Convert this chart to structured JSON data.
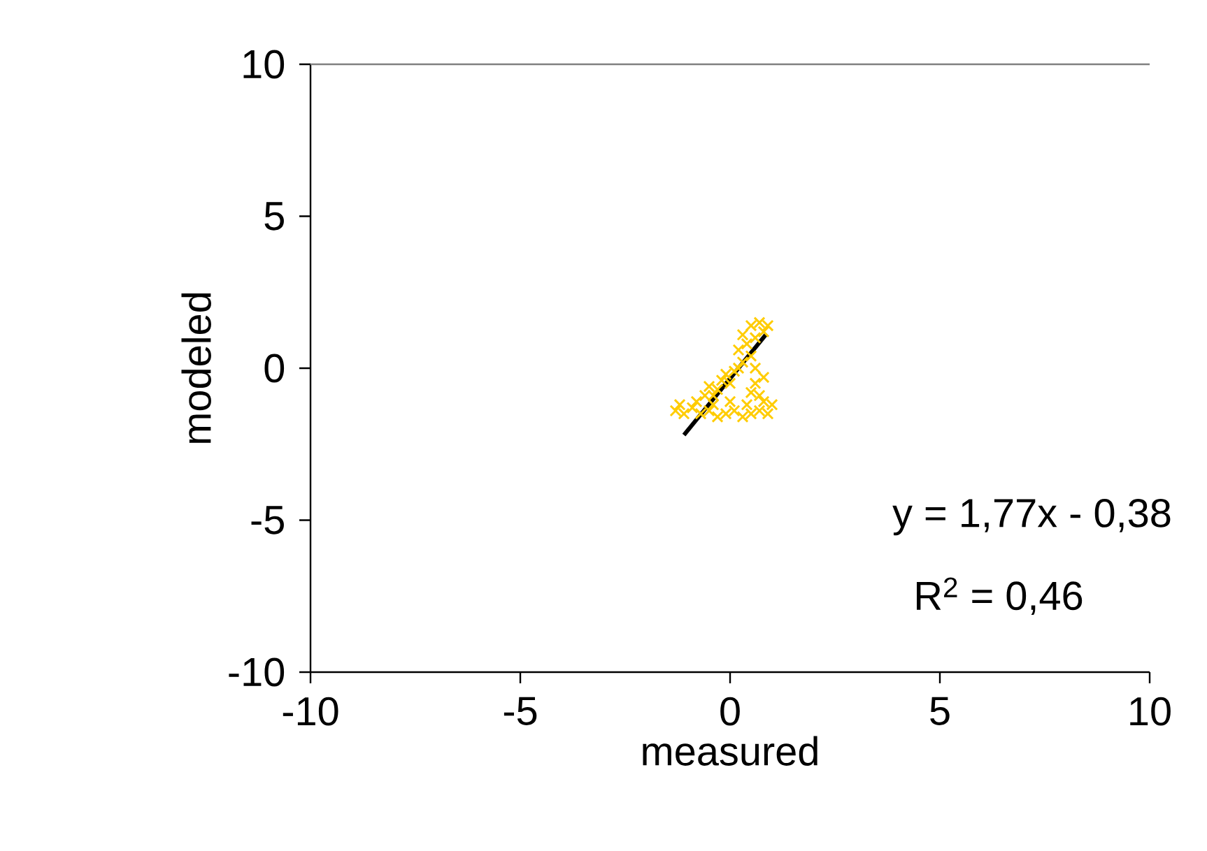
{
  "chart_data": {
    "type": "scatter",
    "xlabel": "measured",
    "ylabel": "modeled",
    "xlim": [
      -10,
      10
    ],
    "ylim": [
      -10,
      10
    ],
    "xticks": [
      -10,
      -5,
      0,
      5,
      10
    ],
    "yticks": [
      -10,
      5,
      0,
      -5,
      10
    ],
    "grid": false,
    "series": [
      {
        "color": "#ffcc00",
        "marker": "cross",
        "x": [
          -1.3,
          -1.1,
          -0.9,
          -0.7,
          -0.5,
          -0.3,
          -0.1,
          0.1,
          0.3,
          0.5,
          0.7,
          0.9,
          1.0,
          -1.2,
          -0.8,
          -0.4,
          0.0,
          0.4,
          0.8,
          -0.6,
          -0.5,
          -0.3,
          -0.2,
          0.0,
          -0.4,
          -0.1,
          0.1,
          0.2,
          0.3,
          0.5,
          0.6,
          0.7,
          0.5,
          0.6,
          0.8,
          0.2,
          0.4,
          0.6,
          0.8,
          0.9,
          0.3,
          0.5,
          0.7
        ],
        "values": [
          -1.4,
          -1.5,
          -1.3,
          -1.5,
          -1.4,
          -1.6,
          -1.5,
          -1.4,
          -1.6,
          -1.5,
          -1.4,
          -1.5,
          -1.2,
          -1.2,
          -1.1,
          -1.2,
          -1.1,
          -1.2,
          -1.1,
          -0.9,
          -0.6,
          -0.7,
          -0.4,
          -0.5,
          -0.9,
          -0.2,
          -0.1,
          0.0,
          0.2,
          -0.8,
          -0.5,
          -0.9,
          0.4,
          0.0,
          -0.3,
          0.6,
          0.8,
          1.0,
          1.2,
          1.4,
          1.1,
          1.4,
          1.5
        ]
      },
      {
        "type": "line",
        "marker": "none",
        "color": "#000000",
        "x": [
          -1.1,
          0.85
        ],
        "values": [
          -2.2,
          1.1
        ]
      }
    ],
    "annotations": [
      "y = 1,77x - 0,38",
      "R$^{2}$ = 0,46"
    ]
  }
}
